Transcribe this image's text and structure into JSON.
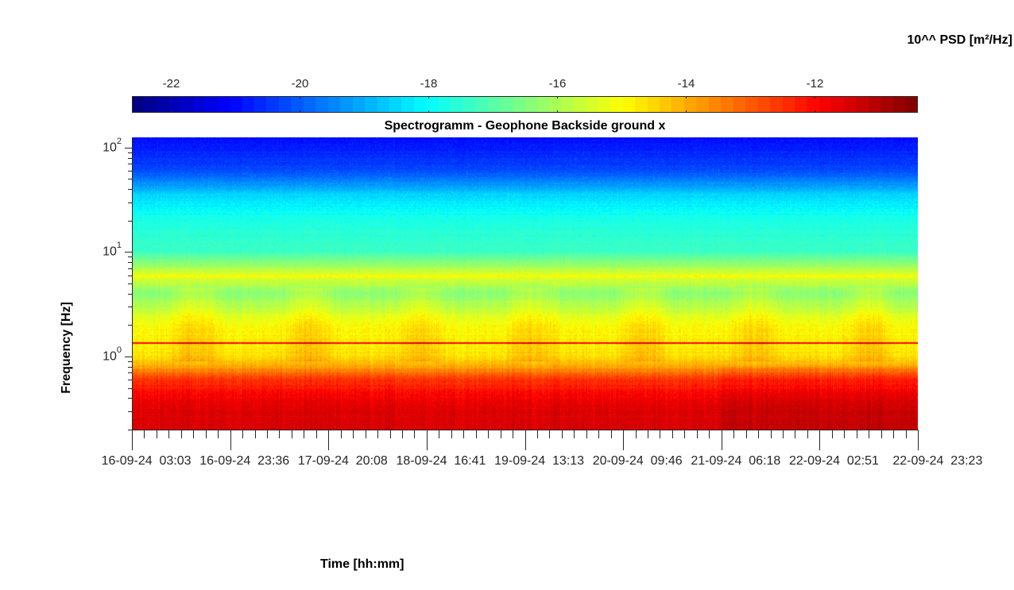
{
  "chart_data": {
    "type": "heatmap",
    "title": "Spectrogramm - Geophone Backside ground x",
    "xlabel": "Time [hh:mm]",
    "ylabel": "Frequency [Hz]",
    "y_scale": "log",
    "ylim": [
      0.2,
      125
    ],
    "y_ticks": [
      {
        "value": 1,
        "label_base": "10",
        "label_exp": "0"
      },
      {
        "value": 10,
        "label_base": "10",
        "label_exp": "1"
      },
      {
        "value": 100,
        "label_base": "10",
        "label_exp": "2"
      }
    ],
    "x_tick_labels": [
      "16-09-24  03:03",
      "16-09-24  23:36",
      "17-09-24  20:08",
      "18-09-24  16:41",
      "19-09-24  13:13",
      "20-09-24  09:46",
      "21-09-24  06:18",
      "22-09-24  02:51",
      "22-09-24  23:23"
    ],
    "colorbar": {
      "title": "10^^ PSD [m²/Hz]",
      "range": [
        -22.6,
        -10.4
      ],
      "ticks": [
        -22,
        -20,
        -18,
        -16,
        -14,
        -12
      ],
      "colormap": "jet"
    },
    "psd_profile": [
      {
        "freq": 0.2,
        "log10_psd": -11.4
      },
      {
        "freq": 0.35,
        "log10_psd": -11.6
      },
      {
        "freq": 0.6,
        "log10_psd": -12.5
      },
      {
        "freq": 0.8,
        "log10_psd": -13.9
      },
      {
        "freq": 1.0,
        "log10_psd": -14.6
      },
      {
        "freq": 2.0,
        "log10_psd": -15.0
      },
      {
        "freq": 4.0,
        "log10_psd": -16.4
      },
      {
        "freq": 6.0,
        "log10_psd": -15.3
      },
      {
        "freq": 10.0,
        "log10_psd": -17.3
      },
      {
        "freq": 20.0,
        "log10_psd": -17.7
      },
      {
        "freq": 35.0,
        "log10_psd": -18.5
      },
      {
        "freq": 60.0,
        "log10_psd": -20.2
      },
      {
        "freq": 125.0,
        "log10_psd": -21.0
      }
    ],
    "spectral_lines": [
      {
        "freq": 5.8,
        "log10_psd": -15.0
      },
      {
        "freq": 1.35,
        "log10_psd": -12.0
      }
    ]
  }
}
